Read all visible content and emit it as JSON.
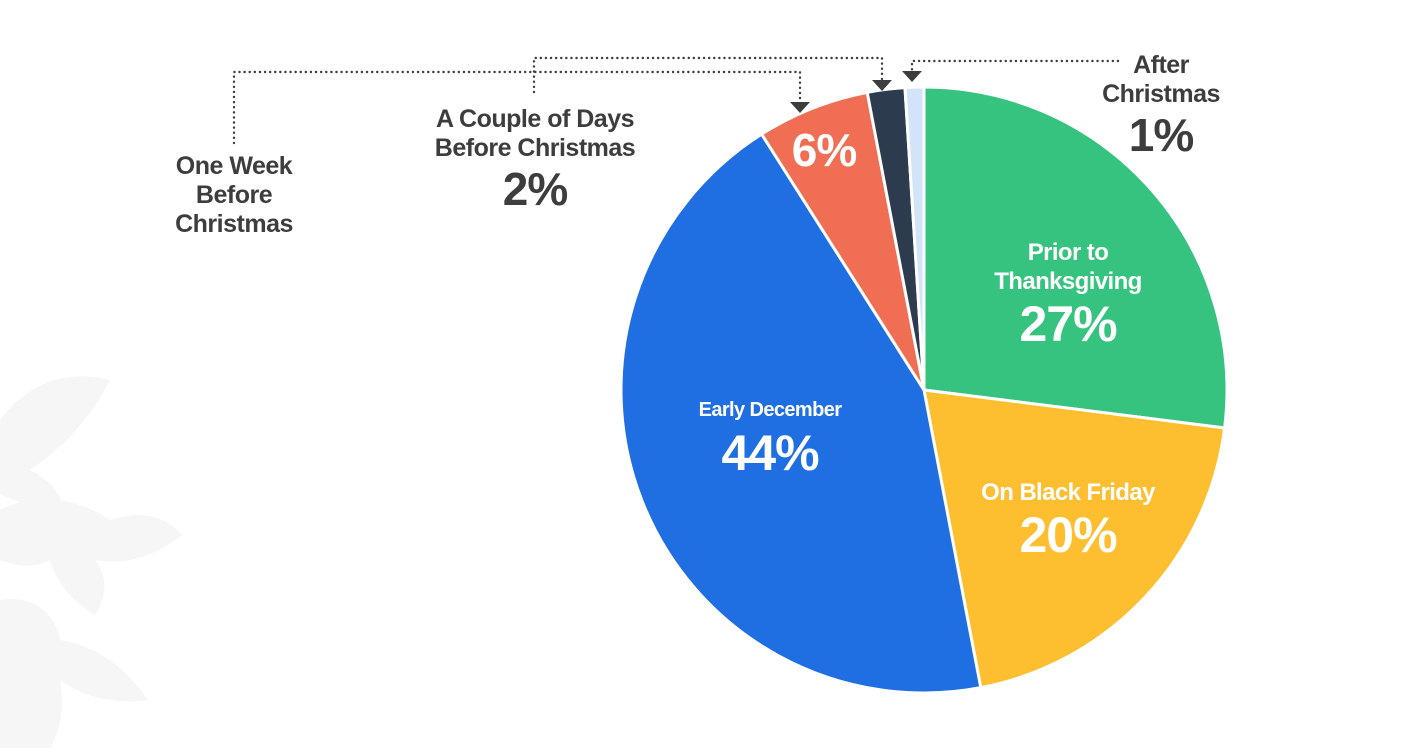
{
  "chart_data": {
    "type": "pie",
    "title": "",
    "start_angle_deg": 0,
    "direction": "clockwise",
    "categories": [
      "Prior to Thanksgiving",
      "On Black Friday",
      "Early December",
      "One Week Before Christmas",
      "A Couple of Days Before Christmas",
      "After Christmas"
    ],
    "values": [
      27,
      20,
      44,
      6,
      2,
      1
    ],
    "unit": "%",
    "colors": [
      "#36c37f",
      "#fdbf2f",
      "#1f6fe2",
      "#f06f54",
      "#2c3b4e",
      "#d3e3f8"
    ],
    "legend": "none (direct labels with dotted leader lines)"
  },
  "labels": {
    "prior_thanksgiving": {
      "line1": "Prior to",
      "line2": "Thanksgiving",
      "pct": "27%"
    },
    "black_friday": {
      "line1": "On Black Friday",
      "pct": "20%"
    },
    "early_december": {
      "line1": "Early December",
      "pct": "44%"
    },
    "one_week": {
      "line1": "One Week",
      "line2": "Before",
      "line3": "Christmas",
      "pct_inside": "6%"
    },
    "couple_days": {
      "line1": "A Couple of Days",
      "line2": "Before Christmas",
      "pct": "2%"
    },
    "after_christmas": {
      "line1": "After",
      "line2": "Christmas",
      "pct": "1%"
    }
  },
  "style": {
    "text_dark": "#3d3d3d",
    "leader_color": "#3d3d3d",
    "background": "#ffffff",
    "watermark": "#f7f7f7"
  }
}
